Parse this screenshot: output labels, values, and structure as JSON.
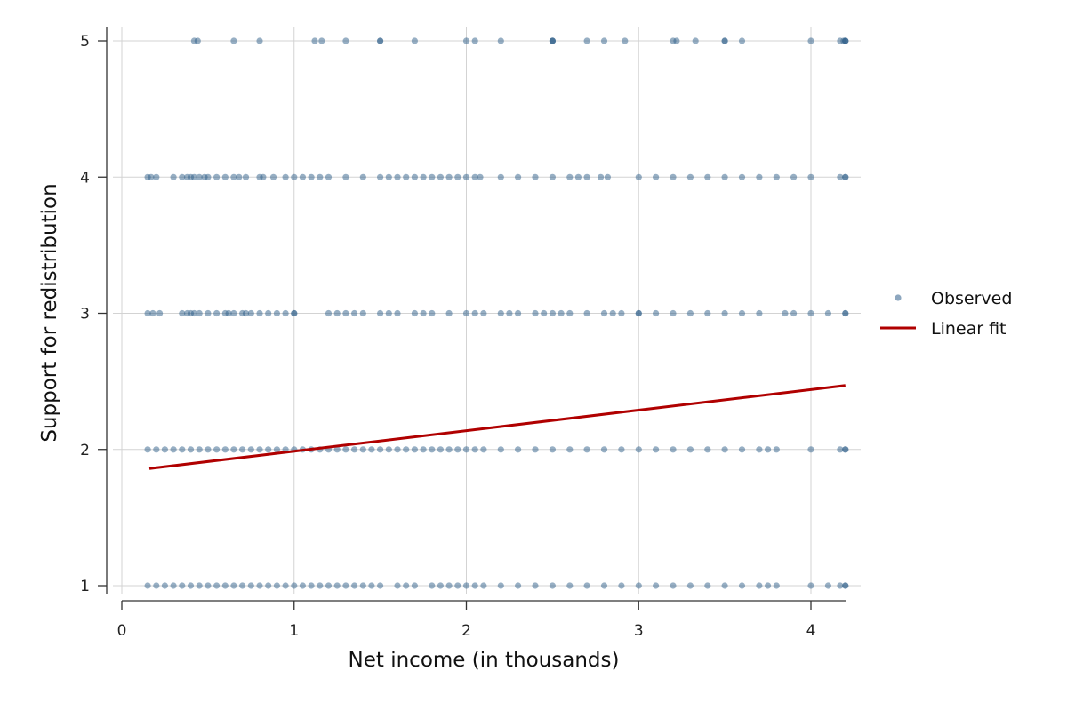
{
  "chart_data": {
    "type": "scatter",
    "title": "",
    "xlabel": "Net income (in thousands)",
    "ylabel": "Support for redistribution",
    "xlim": [
      0,
      4.2
    ],
    "ylim": [
      1,
      5
    ],
    "xticks": [
      "0",
      "1",
      "2",
      "3",
      "4"
    ],
    "yticks": [
      "1",
      "2",
      "3",
      "4",
      "5"
    ],
    "grid": true,
    "legend": {
      "position": "right",
      "entries": [
        "Observed",
        "Linear fit"
      ]
    },
    "colors": {
      "observed": "#2f5f8a",
      "fit": "#b00000",
      "grid": "#d3d3d3",
      "axis": "#333333"
    },
    "series": [
      {
        "name": "Observed",
        "type": "scatter",
        "points": [
          {
            "y": 5,
            "x": [
              0.42,
              0.44,
              0.65,
              0.8,
              1.12,
              1.16,
              1.3,
              1.5,
              1.5,
              1.7,
              2.0,
              2.05,
              2.2,
              2.5,
              2.5,
              2.5,
              2.7,
              2.8,
              2.92,
              3.2,
              3.22,
              3.33,
              3.5,
              3.5,
              3.6,
              4.0,
              4.17,
              4.19,
              4.2,
              4.2,
              4.2
            ]
          },
          {
            "y": 4,
            "x": [
              0.15,
              0.17,
              0.2,
              0.3,
              0.35,
              0.38,
              0.4,
              0.42,
              0.45,
              0.48,
              0.5,
              0.55,
              0.6,
              0.65,
              0.68,
              0.72,
              0.8,
              0.82,
              0.88,
              0.95,
              1.0,
              1.05,
              1.1,
              1.15,
              1.2,
              1.3,
              1.4,
              1.5,
              1.55,
              1.6,
              1.65,
              1.7,
              1.75,
              1.8,
              1.85,
              1.9,
              1.95,
              2.0,
              2.05,
              2.08,
              2.2,
              2.3,
              2.4,
              2.5,
              2.6,
              2.65,
              2.7,
              2.78,
              2.82,
              3.0,
              3.1,
              3.2,
              3.3,
              3.4,
              3.5,
              3.6,
              3.7,
              3.8,
              3.9,
              4.0,
              4.17,
              4.2,
              4.2
            ]
          },
          {
            "y": 3,
            "x": [
              0.15,
              0.18,
              0.22,
              0.35,
              0.38,
              0.4,
              0.42,
              0.45,
              0.5,
              0.55,
              0.6,
              0.62,
              0.65,
              0.7,
              0.72,
              0.75,
              0.8,
              0.85,
              0.9,
              0.95,
              1.0,
              1.0,
              1.2,
              1.25,
              1.3,
              1.35,
              1.4,
              1.5,
              1.55,
              1.6,
              1.7,
              1.75,
              1.8,
              1.9,
              2.0,
              2.05,
              2.1,
              2.2,
              2.25,
              2.3,
              2.4,
              2.45,
              2.5,
              2.55,
              2.6,
              2.7,
              2.8,
              2.85,
              2.9,
              3.0,
              3.0,
              3.1,
              3.2,
              3.3,
              3.4,
              3.5,
              3.6,
              3.7,
              3.85,
              3.9,
              4.0,
              4.1,
              4.2,
              4.2
            ]
          },
          {
            "y": 2,
            "x": [
              0.15,
              0.2,
              0.25,
              0.3,
              0.35,
              0.4,
              0.45,
              0.5,
              0.55,
              0.6,
              0.65,
              0.7,
              0.75,
              0.8,
              0.85,
              0.9,
              0.95,
              1.0,
              1.05,
              1.1,
              1.15,
              1.2,
              1.25,
              1.3,
              1.35,
              1.4,
              1.45,
              1.5,
              1.55,
              1.6,
              1.65,
              1.7,
              1.75,
              1.8,
              1.85,
              1.9,
              1.95,
              2.0,
              2.05,
              2.1,
              2.2,
              2.3,
              2.4,
              2.5,
              2.6,
              2.7,
              2.8,
              2.9,
              3.0,
              3.1,
              3.2,
              3.3,
              3.4,
              3.5,
              3.6,
              3.7,
              3.75,
              3.8,
              4.0,
              4.17,
              4.2,
              4.2
            ]
          },
          {
            "y": 1,
            "x": [
              0.15,
              0.2,
              0.25,
              0.3,
              0.35,
              0.4,
              0.45,
              0.5,
              0.55,
              0.6,
              0.65,
              0.7,
              0.75,
              0.8,
              0.85,
              0.9,
              0.95,
              1.0,
              1.05,
              1.1,
              1.15,
              1.2,
              1.25,
              1.3,
              1.35,
              1.4,
              1.45,
              1.5,
              1.6,
              1.65,
              1.7,
              1.8,
              1.85,
              1.9,
              1.95,
              2.0,
              2.05,
              2.1,
              2.2,
              2.3,
              2.4,
              2.5,
              2.6,
              2.7,
              2.8,
              2.9,
              3.0,
              3.1,
              3.2,
              3.3,
              3.4,
              3.5,
              3.6,
              3.7,
              3.75,
              3.8,
              4.0,
              4.1,
              4.17,
              4.2,
              4.2
            ]
          }
        ]
      },
      {
        "name": "Linear fit",
        "type": "line",
        "x": [
          0.16,
          4.2
        ],
        "y": [
          1.86,
          2.47
        ]
      }
    ]
  }
}
